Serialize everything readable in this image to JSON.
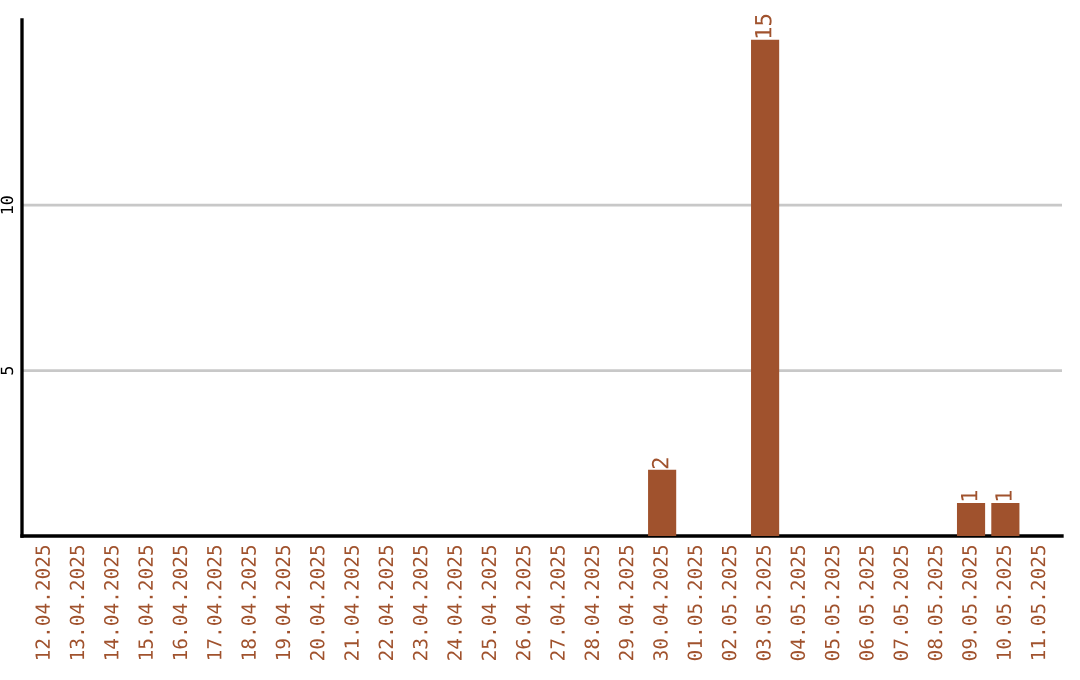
{
  "chart_data": {
    "type": "bar",
    "categories": [
      "12.04.2025",
      "13.04.2025",
      "14.04.2025",
      "15.04.2025",
      "16.04.2025",
      "17.04.2025",
      "18.04.2025",
      "19.04.2025",
      "20.04.2025",
      "21.04.2025",
      "22.04.2025",
      "23.04.2025",
      "24.04.2025",
      "25.04.2025",
      "26.04.2025",
      "27.04.2025",
      "28.04.2025",
      "29.04.2025",
      "30.04.2025",
      "01.05.2025",
      "02.05.2025",
      "03.05.2025",
      "04.05.2025",
      "05.05.2025",
      "06.05.2025",
      "07.05.2025",
      "08.05.2025",
      "09.05.2025",
      "10.05.2025",
      "11.05.2025"
    ],
    "values": [
      0,
      0,
      0,
      0,
      0,
      0,
      0,
      0,
      0,
      0,
      0,
      0,
      0,
      0,
      0,
      0,
      0,
      0,
      2,
      0,
      0,
      15,
      0,
      0,
      0,
      0,
      0,
      1,
      1,
      0
    ],
    "value_labels": [
      null,
      null,
      null,
      null,
      null,
      null,
      null,
      null,
      null,
      null,
      null,
      null,
      null,
      null,
      null,
      null,
      null,
      null,
      "2",
      null,
      null,
      "15",
      null,
      null,
      null,
      null,
      null,
      "1",
      "1",
      null
    ],
    "color": "#a0522d",
    "ylim": [
      0,
      15.6
    ],
    "yticks": [
      5,
      10
    ],
    "grid": "y"
  }
}
